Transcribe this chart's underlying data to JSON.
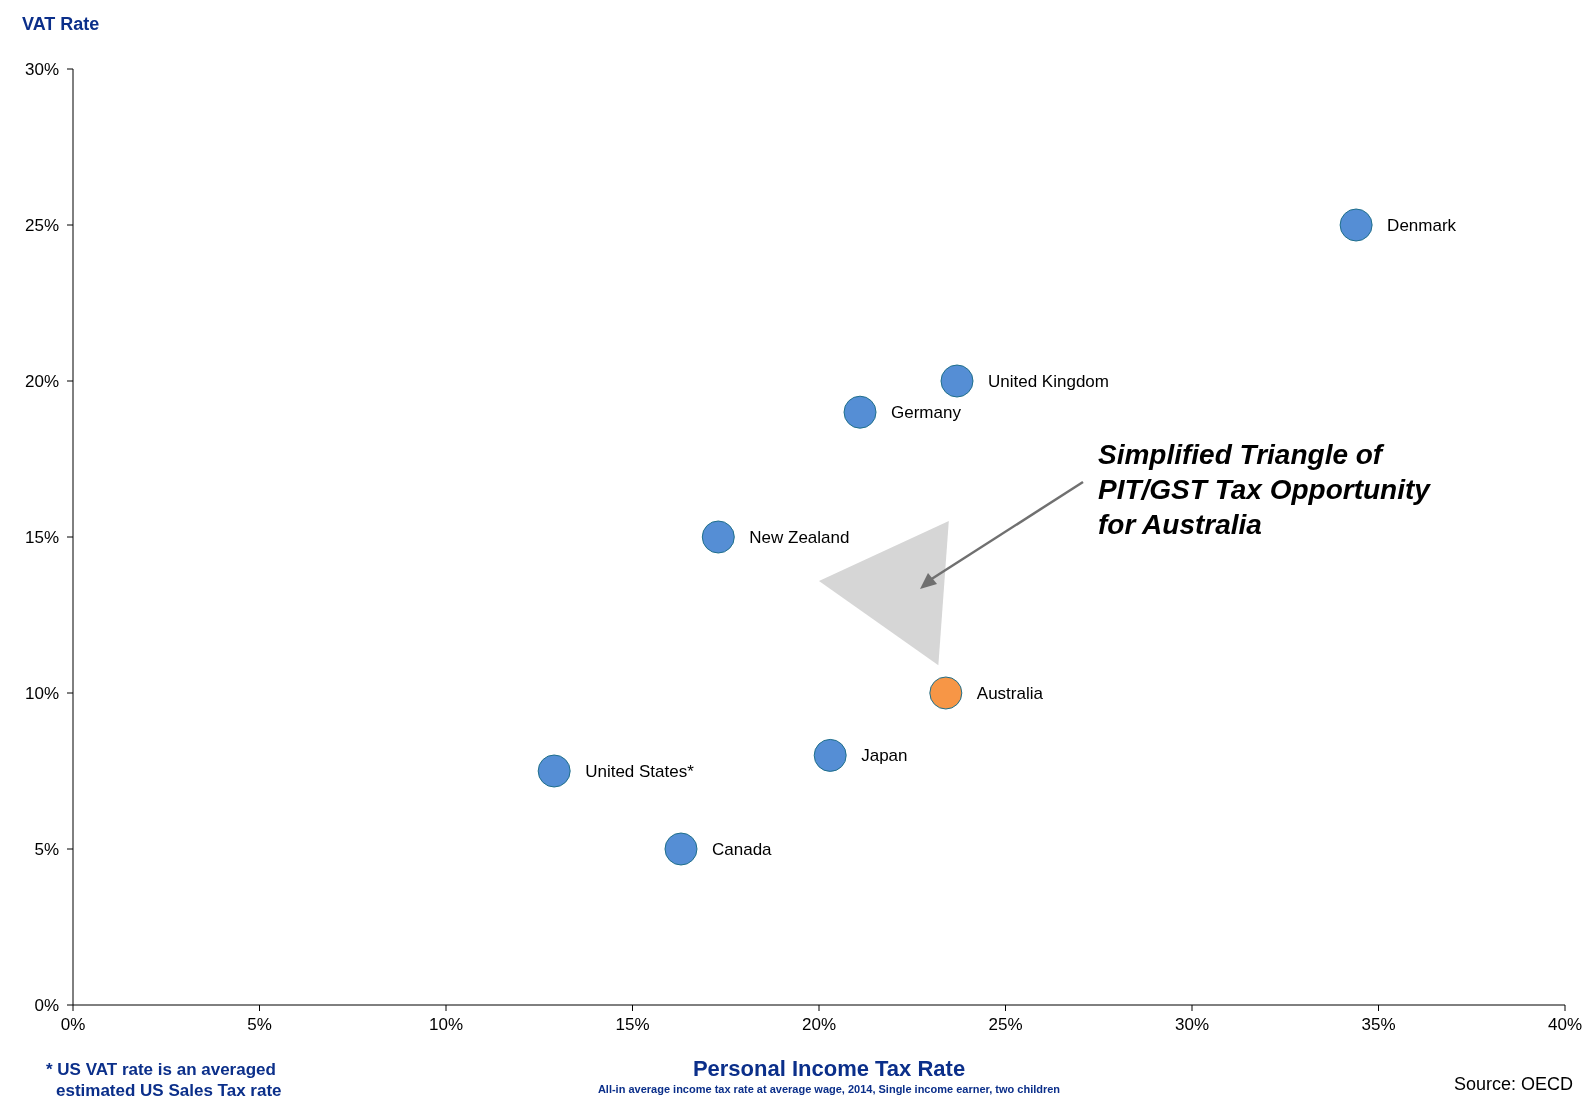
{
  "chart_data": {
    "type": "scatter",
    "ylabel": "VAT Rate",
    "xlabel": "Personal Income Tax Rate",
    "xlim": [
      0,
      40
    ],
    "ylim": [
      0,
      30
    ],
    "xticks": [
      {
        "value": 0,
        "label": "0%"
      },
      {
        "value": 5,
        "label": "5%"
      },
      {
        "value": 10,
        "label": "10%"
      },
      {
        "value": 15,
        "label": "15%"
      },
      {
        "value": 20,
        "label": "20%"
      },
      {
        "value": 25,
        "label": "25%"
      },
      {
        "value": 30,
        "label": "30%"
      },
      {
        "value": 35,
        "label": "35%"
      },
      {
        "value": 40,
        "label": "40%"
      }
    ],
    "yticks": [
      {
        "value": 0,
        "label": "0%"
      },
      {
        "value": 5,
        "label": "5%"
      },
      {
        "value": 10,
        "label": "10%"
      },
      {
        "value": 15,
        "label": "15%"
      },
      {
        "value": 20,
        "label": "20%"
      },
      {
        "value": 25,
        "label": "25%"
      },
      {
        "value": 30,
        "label": "30%"
      }
    ],
    "grid": false,
    "marker": "circle",
    "series": [
      {
        "name": "Denmark",
        "color": "#558ed5",
        "x": [
          34.4
        ],
        "values": [
          25
        ]
      },
      {
        "name": "United Kingdom",
        "color": "#558ed5",
        "x": [
          23.7
        ],
        "values": [
          20
        ]
      },
      {
        "name": "Germany",
        "color": "#558ed5",
        "x": [
          21.1
        ],
        "values": [
          19
        ]
      },
      {
        "name": "New Zealand",
        "color": "#558ed5",
        "x": [
          17.3
        ],
        "values": [
          15
        ]
      },
      {
        "name": "Australia",
        "color": "#f79646",
        "x": [
          23.4
        ],
        "values": [
          10
        ]
      },
      {
        "name": "Japan",
        "color": "#558ed5",
        "x": [
          20.3
        ],
        "values": [
          8
        ]
      },
      {
        "name": "United States*",
        "color": "#558ed5",
        "x": [
          12.9
        ],
        "values": [
          7.5
        ]
      },
      {
        "name": "Canada",
        "color": "#558ed5",
        "x": [
          16.3
        ],
        "values": [
          5
        ]
      }
    ],
    "annotations": [
      "Simplified Triangle of\nPIT/GST Tax Opportunity\nfor Australia",
      "* US VAT rate is an averaged\nestimated US Sales Tax rate",
      "All-in average income tax rate at average wage, 2014, Single income earner, two children",
      "Source: OECD"
    ]
  }
}
